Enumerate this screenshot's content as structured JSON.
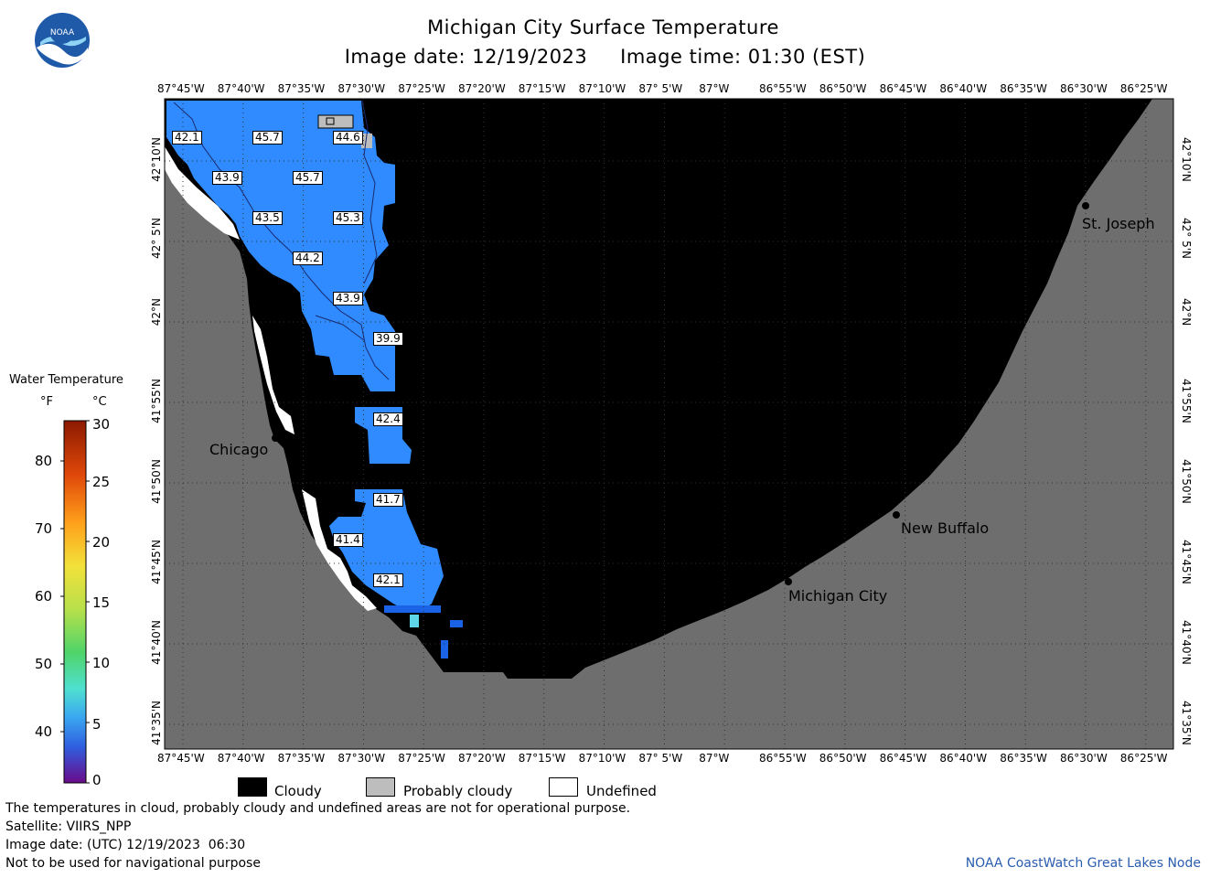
{
  "title": "Michigan City Surface Temperature",
  "subtitle": "Image date: 12/19/2023     Image time: 01:30 (EST)",
  "logo_text": "NOAA",
  "longitude_labels": [
    "87°45'W",
    "87°40'W",
    "87°35'W",
    "87°30'W",
    "87°25'W",
    "87°20'W",
    "87°15'W",
    "87°10'W",
    "87° 5'W",
    "87°W",
    "86°55'W",
    "86°50'W",
    "86°45'W",
    "86°40'W",
    "86°35'W",
    "86°30'W",
    "86°25'W"
  ],
  "latitude_labels": [
    "42°10'N",
    "42° 5'N",
    "42°N",
    "41°55'N",
    "41°50'N",
    "41°45'N",
    "41°40'N",
    "41°35'N"
  ],
  "temperature_labels": [
    "42.1",
    "45.7",
    "44.6",
    "43.9",
    "45.7",
    "43.5",
    "45.3",
    "44.2",
    "43.9",
    "39.9",
    "42.4",
    "41.7",
    "41.4",
    "42.1"
  ],
  "cities": {
    "chicago": "Chicago",
    "st_joseph": "St. Joseph",
    "new_buffalo": "New Buffalo",
    "michigan_city": "Michigan City"
  },
  "legend": {
    "title": "Water Temperature",
    "unit_f": "°F",
    "unit_c": "°C",
    "f_ticks": [
      "80",
      "70",
      "60",
      "50",
      "40"
    ],
    "c_ticks": [
      "30",
      "25",
      "20",
      "15",
      "10",
      "5",
      "0"
    ]
  },
  "key": {
    "cloudy": "Cloudy",
    "probably_cloudy": "Probably cloudy",
    "undefined": "Undefined"
  },
  "footer": {
    "line1": "The temperatures in cloud, probably cloudy and undefined areas are not for operational purpose.",
    "line2": "Satellite: VIIRS_NPP",
    "line3": "Image date: (UTC) 12/19/2023  06:30",
    "line4": "Not to be used for navigational purpose",
    "credit": "NOAA CoastWatch Great Lakes Node"
  },
  "colors": {
    "land": "#6e6e6e",
    "cloud": "#000000",
    "water_warm": "#2f8bff",
    "water_cool": "#1a63e6",
    "probably_cloudy": "#bdbdbd"
  }
}
